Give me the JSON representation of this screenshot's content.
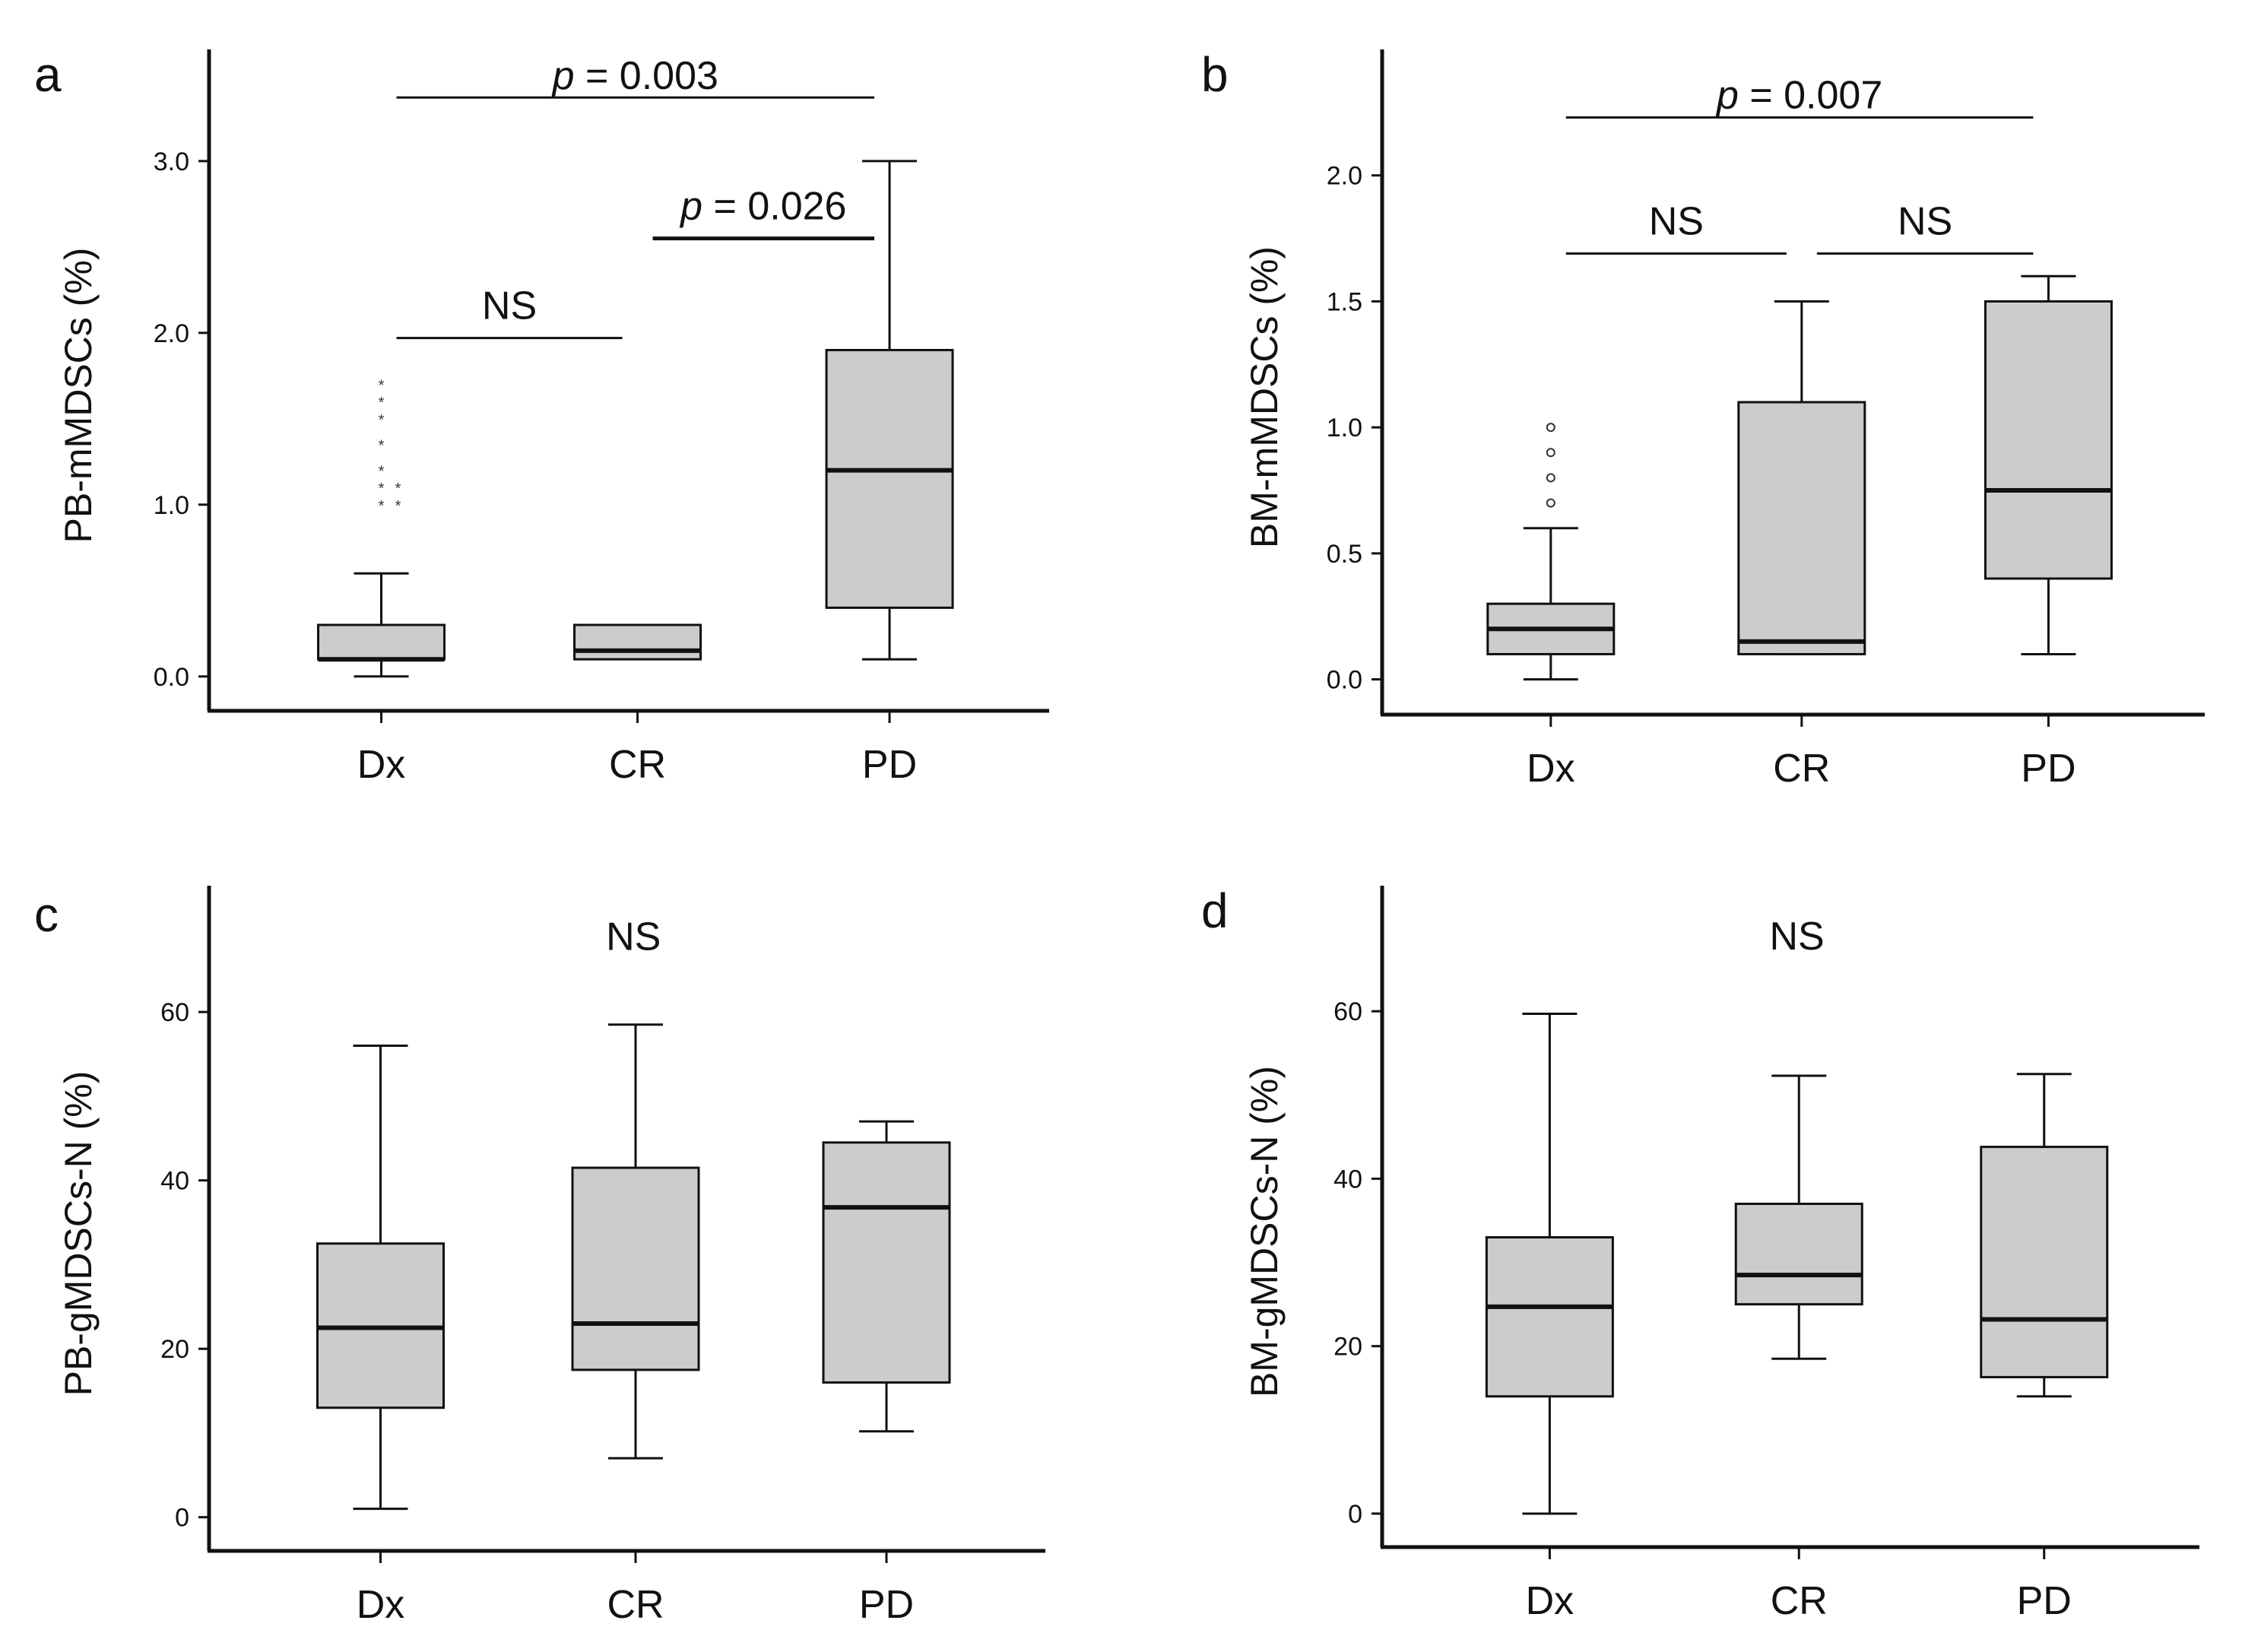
{
  "chart_data": [
    {
      "panel": "a",
      "type": "box",
      "ylabel": "PB-mMDSCs (%)",
      "categories": [
        "Dx",
        "CR",
        "PD"
      ],
      "yticks": [
        0.0,
        1.0,
        2.0,
        3.0
      ],
      "tick_labels": [
        "0.0",
        "1.0",
        "2.0",
        "3.0"
      ],
      "ylim": [
        -0.2,
        3.65
      ],
      "boxes": [
        {
          "min": 0.0,
          "q1": 0.1,
          "median": 0.1,
          "q3": 0.3,
          "max": 0.6
        },
        {
          "q1": 0.1,
          "median": 0.15,
          "q3": 0.3
        },
        {
          "min": 0.1,
          "q1": 0.4,
          "median": 1.2,
          "q3": 1.9,
          "max": 3.0
        }
      ],
      "outliers": [
        {
          "category": 0,
          "y": 1.0,
          "symbol": "*"
        },
        {
          "category": 0,
          "y": 1.0,
          "symbol": "*"
        },
        {
          "category": 0,
          "y": 1.1,
          "symbol": "*"
        },
        {
          "category": 0,
          "y": 1.1,
          "symbol": "*"
        },
        {
          "category": 0,
          "y": 1.2,
          "symbol": "*"
        },
        {
          "category": 0,
          "y": 1.35,
          "symbol": "*"
        },
        {
          "category": 0,
          "y": 1.5,
          "symbol": "*"
        },
        {
          "category": 0,
          "y": 1.6,
          "symbol": "*"
        },
        {
          "category": 0,
          "y": 1.7,
          "symbol": "*"
        }
      ],
      "annotations": [
        {
          "text": "p = 0.003",
          "italic_prefix": "p",
          "rest": " = 0.003",
          "from": 0,
          "to": 2,
          "y": 3.37,
          "text_y": 3.5
        },
        {
          "text": "p = 0.026",
          "italic_prefix": "p",
          "rest": " = 0.026",
          "from": 1,
          "to": 2,
          "y": 2.55,
          "text_y": 2.74,
          "bold": true
        },
        {
          "text": "NS",
          "from": 0,
          "to": 1,
          "y": 1.97,
          "text_y": 2.16
        }
      ]
    },
    {
      "panel": "b",
      "type": "box",
      "ylabel": "BM-mMDSCs (%)",
      "categories": [
        "Dx",
        "CR",
        "PD"
      ],
      "yticks": [
        0.0,
        0.5,
        1.0,
        1.5,
        2.0
      ],
      "tick_labels": [
        "0.0",
        "0.5",
        "1.0",
        "1.5",
        "2.0"
      ],
      "ylim": [
        -0.14,
        2.5
      ],
      "boxes": [
        {
          "min": 0.0,
          "q1": 0.1,
          "median": 0.2,
          "q3": 0.3,
          "max": 0.6
        },
        {
          "min": 0.1,
          "q1": 0.1,
          "median": 0.15,
          "q3": 1.1,
          "max": 1.5
        },
        {
          "min": 0.1,
          "q1": 0.4,
          "median": 0.75,
          "q3": 1.5,
          "max": 1.6
        }
      ],
      "outliers": [
        {
          "category": 0,
          "y": 0.7,
          "symbol": "o"
        },
        {
          "category": 0,
          "y": 0.8,
          "symbol": "o"
        },
        {
          "category": 0,
          "y": 0.9,
          "symbol": "o"
        },
        {
          "category": 0,
          "y": 1.0,
          "symbol": "o"
        }
      ],
      "annotations": [
        {
          "text": "p = 0.007",
          "italic_prefix": "p",
          "rest": " = 0.007",
          "from": 0,
          "to": 2,
          "y": 2.23,
          "text_y": 2.32
        },
        {
          "text": "NS",
          "from": 0,
          "to": 1,
          "y": 1.69,
          "text_y": 1.82
        },
        {
          "text": "NS",
          "from": 1,
          "to": 2,
          "y": 1.69,
          "text_y": 1.82
        }
      ]
    },
    {
      "panel": "c",
      "type": "box",
      "ylabel": "PB-gMDSCs-N (%)",
      "categories": [
        "Dx",
        "CR",
        "PD"
      ],
      "yticks": [
        0,
        20,
        40,
        60
      ],
      "tick_labels": [
        "0",
        "20",
        "40",
        "60"
      ],
      "ylim": [
        -4,
        75
      ],
      "boxes": [
        {
          "min": 1,
          "q1": 13,
          "median": 22.5,
          "q3": 32.5,
          "max": 56
        },
        {
          "min": 7,
          "q1": 17.5,
          "median": 23,
          "q3": 41.5,
          "max": 58.5
        },
        {
          "min": 10.2,
          "q1": 16,
          "median": 36.8,
          "q3": 44.5,
          "max": 47
        }
      ],
      "outliers": [],
      "annotations": [
        {
          "text": "NS",
          "text_y": 69
        }
      ]
    },
    {
      "panel": "d",
      "type": "box",
      "ylabel": "BM-gMDSCs-N (%)",
      "categories": [
        "Dx",
        "CR",
        "PD"
      ],
      "yticks": [
        0,
        20,
        40,
        60
      ],
      "tick_labels": [
        "0",
        "20",
        "40",
        "60"
      ],
      "ylim": [
        -4,
        75
      ],
      "boxes": [
        {
          "min": 0,
          "q1": 14,
          "median": 24.7,
          "q3": 33,
          "max": 59.7
        },
        {
          "min": 18.5,
          "q1": 25,
          "median": 28.5,
          "q3": 37,
          "max": 52.3
        },
        {
          "min": 14,
          "q1": 16.3,
          "median": 23.2,
          "q3": 43.8,
          "max": 52.5
        }
      ],
      "outliers": [],
      "annotations": [
        {
          "text": "NS",
          "text_y": 69
        }
      ]
    }
  ]
}
